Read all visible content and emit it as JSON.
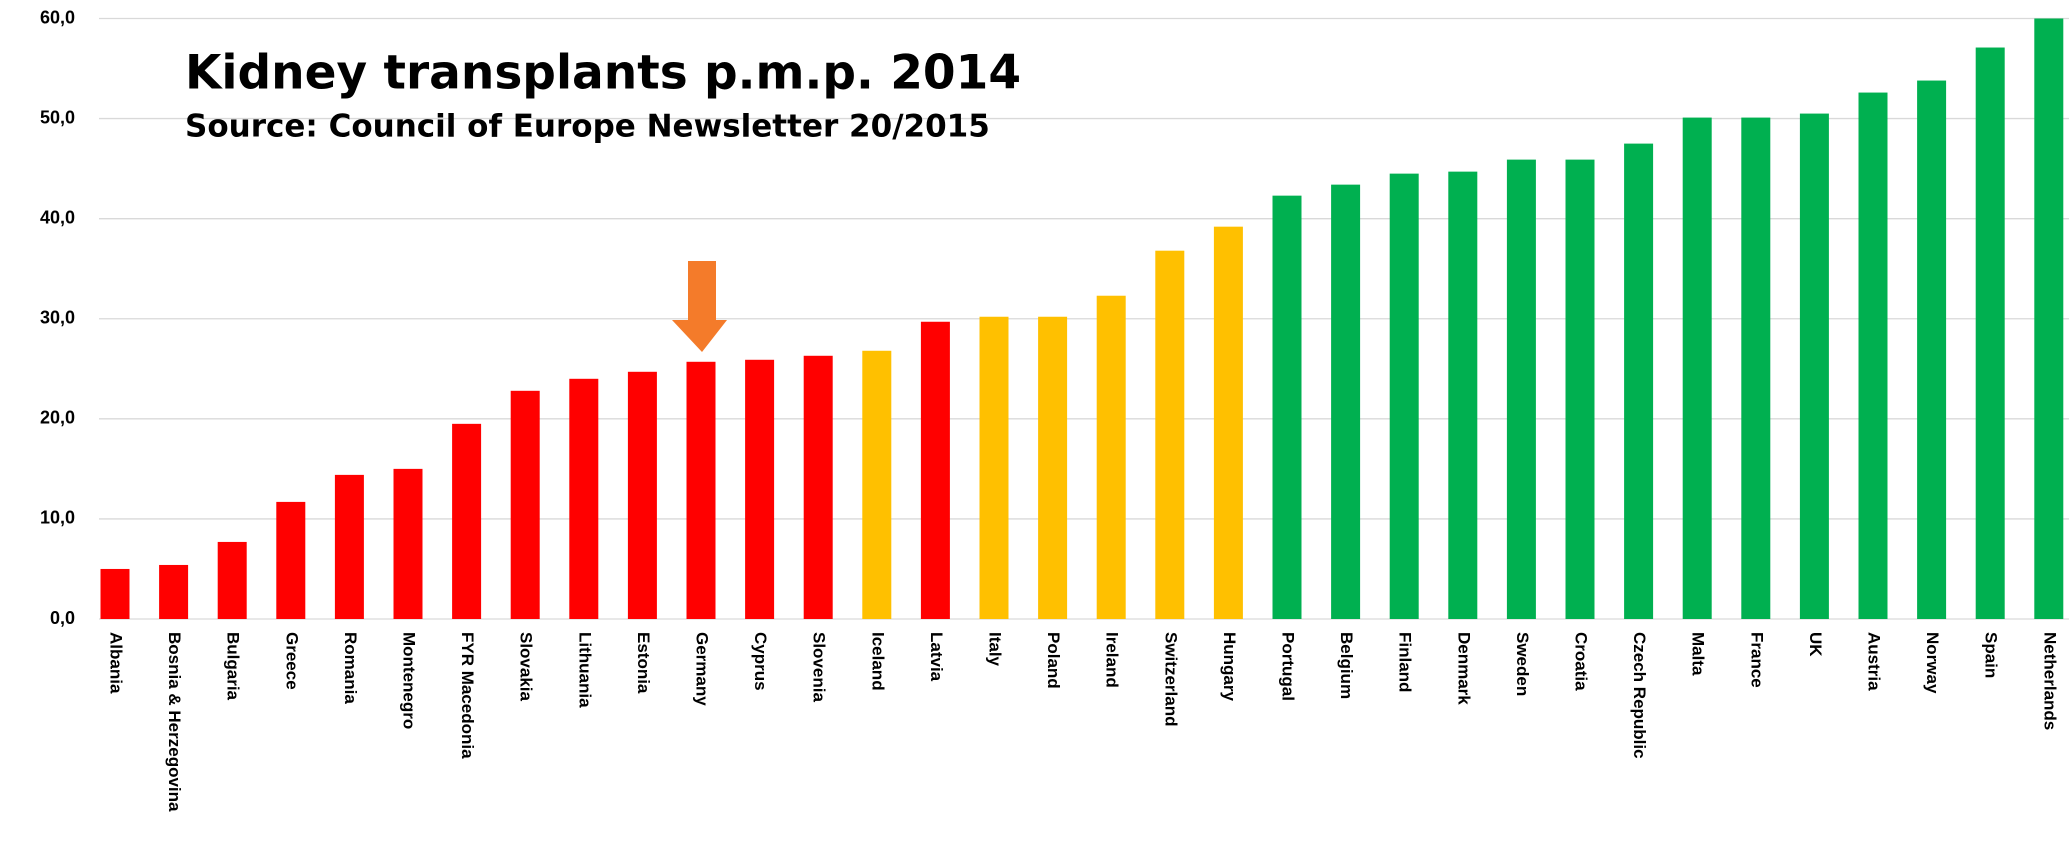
{
  "chart_data": {
    "type": "bar",
    "title": "Kidney transplants p.m.p. 2014",
    "subtitle": "Source: Council of Europe Newsletter 20/2015",
    "categories": [
      "Albania",
      "Bosnia & Herzegovina",
      "Bulgaria",
      "Greece",
      "Romania",
      "Montenegro",
      "FYR Macedonia",
      "Slovakia",
      "Lithuania",
      "Estonia",
      "Germany",
      "Cyprus",
      "Slovenia",
      "Iceland",
      "Latvia",
      "Italy",
      "Poland",
      "Ireland",
      "Switzerland",
      "Hungary",
      "Portugal",
      "Belgium",
      "Finland",
      "Denmark",
      "Sweden",
      "Croatia",
      "Czech Republic",
      "Malta",
      "France",
      "UK",
      "Austria",
      "Norway",
      "Spain",
      "Netherlands"
    ],
    "values": [
      5.0,
      5.4,
      7.7,
      11.7,
      14.4,
      15.0,
      19.5,
      22.8,
      24.0,
      24.7,
      25.7,
      25.9,
      26.3,
      26.8,
      29.7,
      30.2,
      30.2,
      32.3,
      36.8,
      39.2,
      42.3,
      43.4,
      44.5,
      44.7,
      45.9,
      45.9,
      47.5,
      50.1,
      50.1,
      50.5,
      52.6,
      53.8,
      57.1,
      60.0
    ],
    "colors": [
      "#ff0000",
      "#ff0000",
      "#ff0000",
      "#ff0000",
      "#ff0000",
      "#ff0000",
      "#ff0000",
      "#ff0000",
      "#ff0000",
      "#ff0000",
      "#ff0000",
      "#ff0000",
      "#ff0000",
      "#ffc000",
      "#ff0000",
      "#ffc000",
      "#ffc000",
      "#ffc000",
      "#ffc000",
      "#ffc000",
      "#00b050",
      "#00b050",
      "#00b050",
      "#00b050",
      "#00b050",
      "#00b050",
      "#00b050",
      "#00b050",
      "#00b050",
      "#00b050",
      "#00b050",
      "#00b050",
      "#00b050",
      "#00b050"
    ],
    "ylim": [
      0,
      60
    ],
    "yticks": [
      {
        "value": 0,
        "label": "0,0"
      },
      {
        "value": 10,
        "label": "10,0"
      },
      {
        "value": 20,
        "label": "20,0"
      },
      {
        "value": 30,
        "label": "30,0"
      },
      {
        "value": 40,
        "label": "40,0"
      },
      {
        "value": 50,
        "label": "50,0"
      },
      {
        "value": 60,
        "label": "60,0"
      }
    ],
    "grid": true
  }
}
